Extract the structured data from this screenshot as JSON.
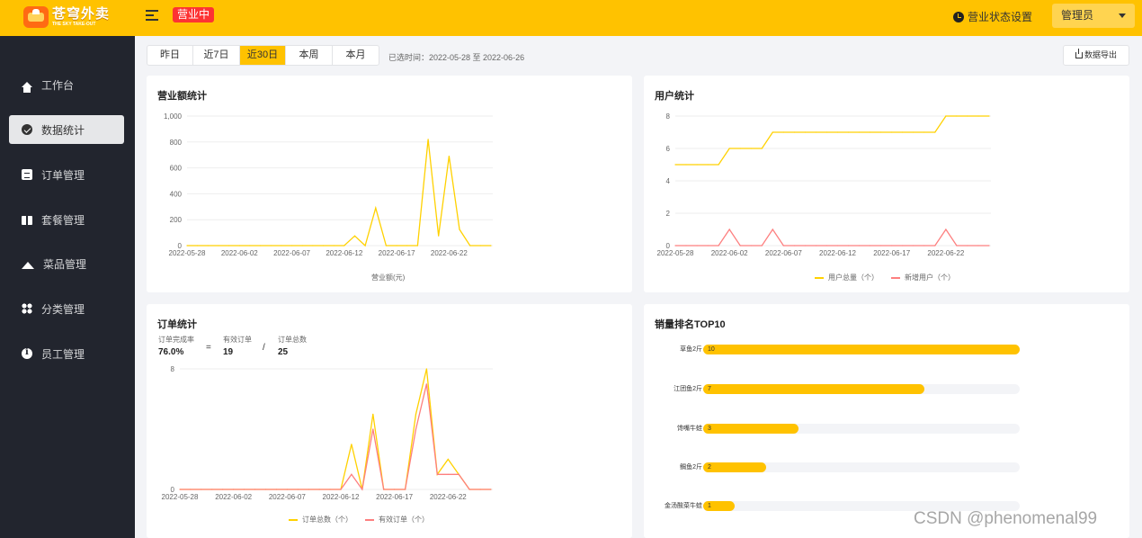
{
  "header": {
    "logo_cn": "苍穹外卖",
    "logo_en": "THE SKY TAKE-OUT",
    "status_badge": "营业中",
    "shop_status_label": "营业状态设置",
    "user_label": "管理员",
    "accent_color": "#ffc200"
  },
  "sidebar": {
    "items": [
      {
        "label": "工作台",
        "icon": "home-icon"
      },
      {
        "label": "数据统计",
        "icon": "stats-icon",
        "active": true
      },
      {
        "label": "订单管理",
        "icon": "order-icon"
      },
      {
        "label": "套餐管理",
        "icon": "combo-icon"
      },
      {
        "label": "菜品管理",
        "icon": "dish-icon"
      },
      {
        "label": "分类管理",
        "icon": "category-icon"
      },
      {
        "label": "员工管理",
        "icon": "staff-icon"
      }
    ]
  },
  "toolbar": {
    "ranges": [
      "昨日",
      "近7日",
      "近30日",
      "本周",
      "本月"
    ],
    "active_range": 2,
    "selected_time": "已选时间：2022-05-28 至 2022-06-26",
    "export_label": "数据导出"
  },
  "watermark": "CSDN @phenomenal99",
  "chart_data": [
    {
      "id": "turnover",
      "type": "line",
      "title": "营业额统计",
      "dates": [
        "2022-05-28",
        "2022-05-29",
        "2022-05-30",
        "2022-05-31",
        "2022-06-01",
        "2022-06-02",
        "2022-06-03",
        "2022-06-04",
        "2022-06-05",
        "2022-06-06",
        "2022-06-07",
        "2022-06-08",
        "2022-06-09",
        "2022-06-10",
        "2022-06-11",
        "2022-06-12",
        "2022-06-13",
        "2022-06-14",
        "2022-06-15",
        "2022-06-16",
        "2022-06-17",
        "2022-06-18",
        "2022-06-19",
        "2022-06-20",
        "2022-06-21",
        "2022-06-22",
        "2022-06-23",
        "2022-06-24",
        "2022-06-25",
        "2022-06-26"
      ],
      "tick_labels": [
        "2022-05-28",
        "2022-06-02",
        "2022-06-07",
        "2022-06-12",
        "2022-06-17",
        "2022-06-22"
      ],
      "yticks": [
        "0",
        "200",
        "400",
        "600",
        "800",
        "1,000"
      ],
      "ylim": [
        0,
        1000
      ],
      "series": [
        {
          "name": "营业额(元)",
          "color": "#ffd100",
          "values": [
            0,
            0,
            0,
            0,
            0,
            0,
            0,
            0,
            0,
            0,
            0,
            0,
            0,
            0,
            0,
            0,
            75,
            0,
            290,
            0,
            0,
            0,
            0,
            820,
            75,
            690,
            125,
            0,
            0,
            0
          ]
        }
      ],
      "legend": [
        "营业额(元)"
      ]
    },
    {
      "id": "users",
      "type": "line",
      "title": "用户统计",
      "dates": [
        "2022-05-28",
        "2022-05-29",
        "2022-05-30",
        "2022-05-31",
        "2022-06-01",
        "2022-06-02",
        "2022-06-03",
        "2022-06-04",
        "2022-06-05",
        "2022-06-06",
        "2022-06-07",
        "2022-06-08",
        "2022-06-09",
        "2022-06-10",
        "2022-06-11",
        "2022-06-12",
        "2022-06-13",
        "2022-06-14",
        "2022-06-15",
        "2022-06-16",
        "2022-06-17",
        "2022-06-18",
        "2022-06-19",
        "2022-06-20",
        "2022-06-21",
        "2022-06-22",
        "2022-06-23",
        "2022-06-24",
        "2022-06-25",
        "2022-06-26"
      ],
      "tick_labels": [
        "2022-05-28",
        "2022-06-02",
        "2022-06-07",
        "2022-06-12",
        "2022-06-17",
        "2022-06-22"
      ],
      "yticks": [
        "0",
        "2",
        "4",
        "6",
        "8"
      ],
      "ylim": [
        0,
        8
      ],
      "series": [
        {
          "name": "用户总量（个）",
          "color": "#ffd100",
          "values": [
            5,
            5,
            5,
            5,
            5,
            6,
            6,
            6,
            6,
            7,
            7,
            7,
            7,
            7,
            7,
            7,
            7,
            7,
            7,
            7,
            7,
            7,
            7,
            7,
            7,
            8,
            8,
            8,
            8,
            8
          ]
        },
        {
          "name": "新增用户（个）",
          "color": "#fd7f7f",
          "values": [
            0,
            0,
            0,
            0,
            0,
            1,
            0,
            0,
            0,
            1,
            0,
            0,
            0,
            0,
            0,
            0,
            0,
            0,
            0,
            0,
            0,
            0,
            0,
            0,
            0,
            1,
            0,
            0,
            0,
            0
          ]
        }
      ],
      "legend": [
        "用户总量（个）",
        "新增用户（个）"
      ]
    },
    {
      "id": "orders",
      "type": "line",
      "title": "订单统计",
      "dates": [
        "2022-05-28",
        "2022-05-29",
        "2022-05-30",
        "2022-05-31",
        "2022-06-01",
        "2022-06-02",
        "2022-06-03",
        "2022-06-04",
        "2022-06-05",
        "2022-06-06",
        "2022-06-07",
        "2022-06-08",
        "2022-06-09",
        "2022-06-10",
        "2022-06-11",
        "2022-06-12",
        "2022-06-13",
        "2022-06-14",
        "2022-06-15",
        "2022-06-16",
        "2022-06-17",
        "2022-06-18",
        "2022-06-19",
        "2022-06-20",
        "2022-06-21",
        "2022-06-22",
        "2022-06-23",
        "2022-06-24",
        "2022-06-25",
        "2022-06-26"
      ],
      "tick_labels": [
        "2022-05-28",
        "2022-06-02",
        "2022-06-07",
        "2022-06-12",
        "2022-06-17",
        "2022-06-22"
      ],
      "yticks": [
        "0",
        "8"
      ],
      "ylim": [
        0,
        8
      ],
      "series": [
        {
          "name": "订单总数（个）",
          "color": "#ffd100",
          "values": [
            0,
            0,
            0,
            0,
            0,
            0,
            0,
            0,
            0,
            0,
            0,
            0,
            0,
            0,
            0,
            0,
            3,
            0,
            5,
            0,
            0,
            0,
            5,
            8,
            1,
            2,
            1,
            0,
            0,
            0
          ]
        },
        {
          "name": "有效订单（个）",
          "color": "#fd7f7f",
          "values": [
            0,
            0,
            0,
            0,
            0,
            0,
            0,
            0,
            0,
            0,
            0,
            0,
            0,
            0,
            0,
            0,
            1,
            0,
            4,
            0,
            0,
            0,
            4,
            7,
            1,
            1,
            1,
            0,
            0,
            0
          ]
        }
      ],
      "legend": [
        "订单总数（个）",
        "有效订单（个）"
      ],
      "summary": {
        "rate_label": "订单完成率",
        "rate_value": "76.0%",
        "valid_label": "有效订单",
        "valid_value": "19",
        "total_label": "订单总数",
        "total_value": "25",
        "eq": "=",
        "div": "/"
      }
    },
    {
      "id": "top10",
      "type": "bar",
      "title": "销量排名TOP10",
      "categories": [
        "草鱼2斤",
        "江团鱼2斤",
        "馋嘴牛蛙",
        "鲷鱼2斤",
        "金汤酸菜牛蛙"
      ],
      "values": [
        10,
        7,
        3,
        2,
        1
      ],
      "xlim": [
        0,
        10
      ],
      "color": "#ffc200"
    }
  ]
}
